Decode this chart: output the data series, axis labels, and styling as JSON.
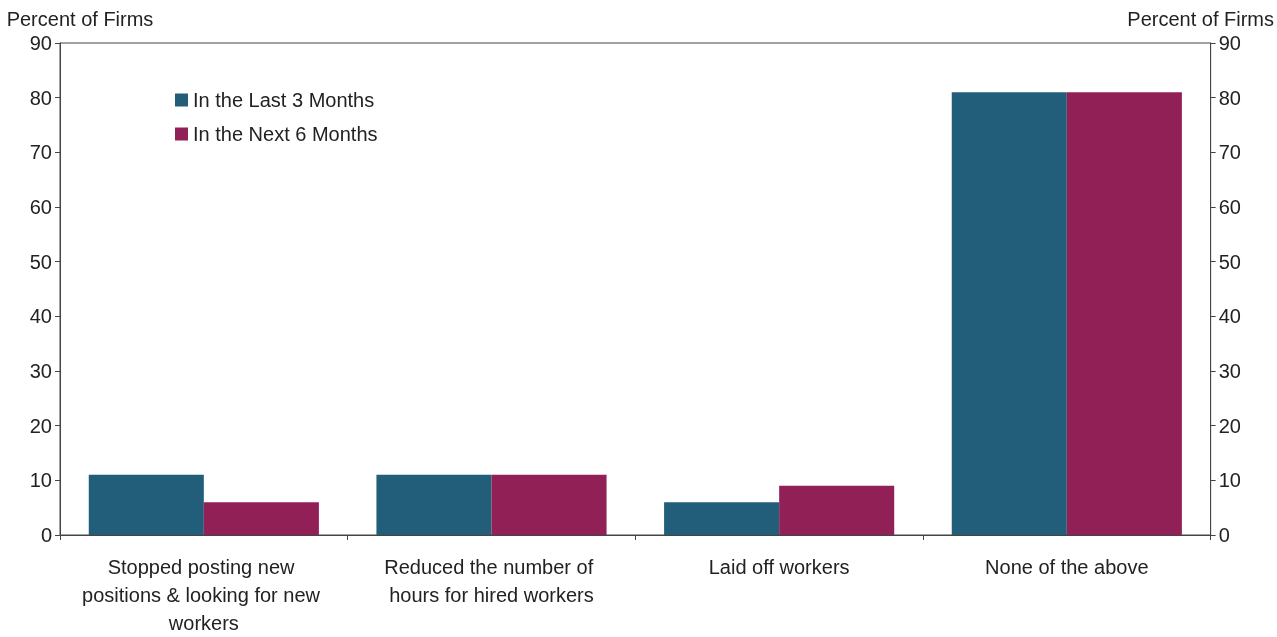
{
  "chart_data": {
    "type": "bar",
    "ylabel": "Percent of Firms",
    "y2label": "Percent of Firms",
    "categories": [
      "Stopped posting new positions & looking for new workers",
      "Reduced the number of hours for hired workers",
      "Laid off workers",
      "None of the above"
    ],
    "series": [
      {
        "name": "In the Last 3 Months",
        "color": "#225e7a",
        "values": [
          11,
          11,
          6,
          81
        ]
      },
      {
        "name": "In the Next 6 Months",
        "color": "#912057",
        "values": [
          6,
          11,
          9,
          81
        ]
      }
    ],
    "ylim": [
      0,
      90
    ],
    "yticks": [
      0,
      10,
      20,
      30,
      40,
      50,
      60,
      70,
      80,
      90
    ],
    "y2lim": [
      0,
      90
    ],
    "y2ticks": [
      0,
      10,
      20,
      30,
      40,
      50,
      60,
      70,
      80,
      90
    ],
    "grid": false,
    "legend": "top left"
  }
}
